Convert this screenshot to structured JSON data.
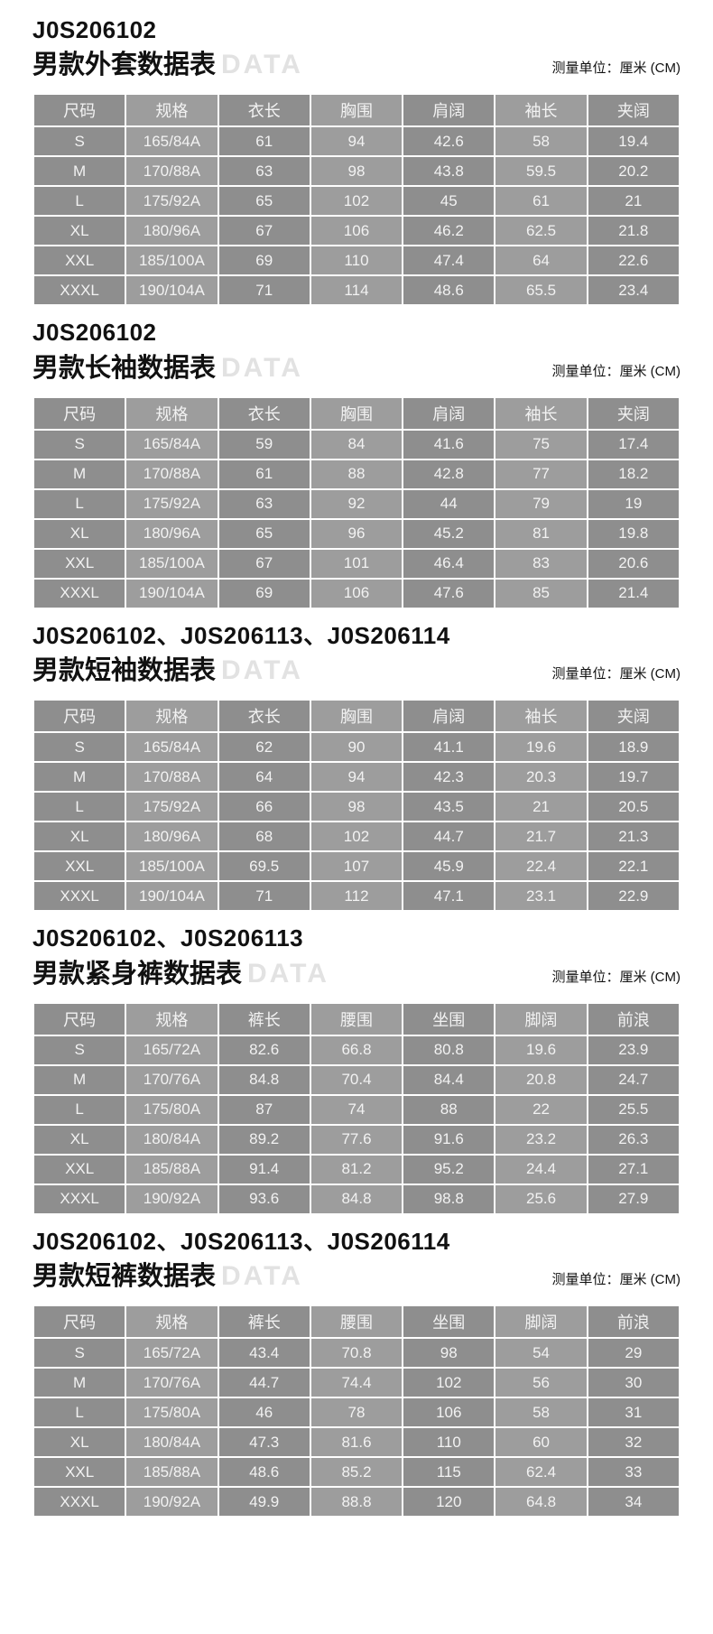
{
  "watermark": "DATA",
  "unit_label": "测量单位：厘米 (CM)",
  "colors": {
    "cell_dark": "#8e8e8e",
    "cell_light": "#9d9d9d",
    "cell_text": "#f2f2f2",
    "watermark_gray": "#e2e2e2",
    "title_black": "#111111"
  },
  "sections": [
    {
      "code": "J0S206102",
      "title": "男款外套数据表",
      "headers": [
        "尺码",
        "规格",
        "衣长",
        "胸围",
        "肩阔",
        "袖长",
        "夹阔"
      ],
      "rows": [
        [
          "S",
          "165/84A",
          "61",
          "94",
          "42.6",
          "58",
          "19.4"
        ],
        [
          "M",
          "170/88A",
          "63",
          "98",
          "43.8",
          "59.5",
          "20.2"
        ],
        [
          "L",
          "175/92A",
          "65",
          "102",
          "45",
          "61",
          "21"
        ],
        [
          "XL",
          "180/96A",
          "67",
          "106",
          "46.2",
          "62.5",
          "21.8"
        ],
        [
          "XXL",
          "185/100A",
          "69",
          "110",
          "47.4",
          "64",
          "22.6"
        ],
        [
          "XXXL",
          "190/104A",
          "71",
          "114",
          "48.6",
          "65.5",
          "23.4"
        ]
      ]
    },
    {
      "code": "J0S206102",
      "title": "男款长袖数据表",
      "headers": [
        "尺码",
        "规格",
        "衣长",
        "胸围",
        "肩阔",
        "袖长",
        "夹阔"
      ],
      "rows": [
        [
          "S",
          "165/84A",
          "59",
          "84",
          "41.6",
          "75",
          "17.4"
        ],
        [
          "M",
          "170/88A",
          "61",
          "88",
          "42.8",
          "77",
          "18.2"
        ],
        [
          "L",
          "175/92A",
          "63",
          "92",
          "44",
          "79",
          "19"
        ],
        [
          "XL",
          "180/96A",
          "65",
          "96",
          "45.2",
          "81",
          "19.8"
        ],
        [
          "XXL",
          "185/100A",
          "67",
          "101",
          "46.4",
          "83",
          "20.6"
        ],
        [
          "XXXL",
          "190/104A",
          "69",
          "106",
          "47.6",
          "85",
          "21.4"
        ]
      ]
    },
    {
      "code": "J0S206102、J0S206113、J0S206114",
      "title": "男款短袖数据表",
      "headers": [
        "尺码",
        "规格",
        "衣长",
        "胸围",
        "肩阔",
        "袖长",
        "夹阔"
      ],
      "rows": [
        [
          "S",
          "165/84A",
          "62",
          "90",
          "41.1",
          "19.6",
          "18.9"
        ],
        [
          "M",
          "170/88A",
          "64",
          "94",
          "42.3",
          "20.3",
          "19.7"
        ],
        [
          "L",
          "175/92A",
          "66",
          "98",
          "43.5",
          "21",
          "20.5"
        ],
        [
          "XL",
          "180/96A",
          "68",
          "102",
          "44.7",
          "21.7",
          "21.3"
        ],
        [
          "XXL",
          "185/100A",
          "69.5",
          "107",
          "45.9",
          "22.4",
          "22.1"
        ],
        [
          "XXXL",
          "190/104A",
          "71",
          "112",
          "47.1",
          "23.1",
          "22.9"
        ]
      ]
    },
    {
      "code": "J0S206102、J0S206113",
      "title": "男款紧身裤数据表",
      "headers": [
        "尺码",
        "规格",
        "裤长",
        "腰围",
        "坐围",
        "脚阔",
        "前浪"
      ],
      "rows": [
        [
          "S",
          "165/72A",
          "82.6",
          "66.8",
          "80.8",
          "19.6",
          "23.9"
        ],
        [
          "M",
          "170/76A",
          "84.8",
          "70.4",
          "84.4",
          "20.8",
          "24.7"
        ],
        [
          "L",
          "175/80A",
          "87",
          "74",
          "88",
          "22",
          "25.5"
        ],
        [
          "XL",
          "180/84A",
          "89.2",
          "77.6",
          "91.6",
          "23.2",
          "26.3"
        ],
        [
          "XXL",
          "185/88A",
          "91.4",
          "81.2",
          "95.2",
          "24.4",
          "27.1"
        ],
        [
          "XXXL",
          "190/92A",
          "93.6",
          "84.8",
          "98.8",
          "25.6",
          "27.9"
        ]
      ]
    },
    {
      "code": "J0S206102、J0S206113、J0S206114",
      "title": "男款短裤数据表",
      "headers": [
        "尺码",
        "规格",
        "裤长",
        "腰围",
        "坐围",
        "脚阔",
        "前浪"
      ],
      "rows": [
        [
          "S",
          "165/72A",
          "43.4",
          "70.8",
          "98",
          "54",
          "29"
        ],
        [
          "M",
          "170/76A",
          "44.7",
          "74.4",
          "102",
          "56",
          "30"
        ],
        [
          "L",
          "175/80A",
          "46",
          "78",
          "106",
          "58",
          "31"
        ],
        [
          "XL",
          "180/84A",
          "47.3",
          "81.6",
          "110",
          "60",
          "32"
        ],
        [
          "XXL",
          "185/88A",
          "48.6",
          "85.2",
          "115",
          "62.4",
          "33"
        ],
        [
          "XXXL",
          "190/92A",
          "49.9",
          "88.8",
          "120",
          "64.8",
          "34"
        ]
      ]
    }
  ]
}
